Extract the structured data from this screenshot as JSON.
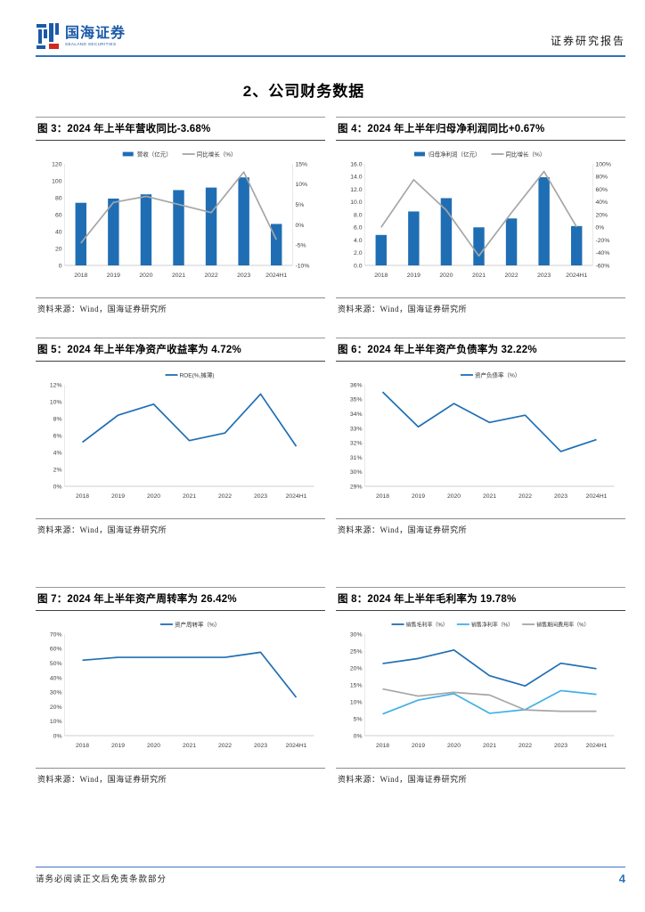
{
  "header": {
    "logo_text": "国海证券",
    "logo_subtext": "SEALAND SECURITIES",
    "report_type": "证券研究报告"
  },
  "section_title": "2、公司财务数据",
  "source_label": "资料来源：Wind，国海证券研究所",
  "footer": {
    "disclaimer": "请务必阅读正文后免责条款部分",
    "page_number": "4"
  },
  "colors": {
    "primary_blue": "#1F6EB4",
    "light_blue": "#41B0E6",
    "gray_line": "#A6A6A6",
    "logo_blue": "#1B5AA8",
    "logo_red": "#CE2A20",
    "header_rule": "#2E74B5",
    "footer_rule": "#4472C4",
    "page_number_blue": "#2E75B6"
  },
  "figures": {
    "fig3": {
      "title": "图 3：2024 年上半年营收同比-3.68%"
    },
    "fig4": {
      "title": "图 4：2024 年上半年归母净利润同比+0.67%"
    },
    "fig5": {
      "title": "图 5：2024 年上半年净资产收益率为 4.72%"
    },
    "fig6": {
      "title": "图 6：2024 年上半年资产负债率为 32.22%"
    },
    "fig7": {
      "title": "图 7：2024 年上半年资产周转率为 26.42%"
    },
    "fig8": {
      "title": "图 8：2024 年上半年毛利率为 19.78%"
    }
  },
  "chart_data": [
    {
      "id": "fig3",
      "type": "combo",
      "legend_position": "top",
      "categories": [
        "2018",
        "2019",
        "2020",
        "2021",
        "2022",
        "2023",
        "2024H1"
      ],
      "bar_series": {
        "name": "营收（亿元）",
        "values": [
          74,
          79,
          84,
          89,
          92,
          104,
          49
        ],
        "color": "#1F6EB4"
      },
      "line_series": {
        "name": "同比增长（%）",
        "values": [
          -4.5,
          5.5,
          7.0,
          5.0,
          3.0,
          13.0,
          -3.68
        ],
        "color": "#A6A6A6",
        "axis": "right"
      },
      "left_axis": {
        "min": 0,
        "max": 120,
        "step": 20,
        "fmt": "int"
      },
      "right_axis": {
        "min": -10,
        "max": 15,
        "step": 5,
        "fmt": "pct"
      }
    },
    {
      "id": "fig4",
      "type": "combo",
      "legend_position": "top",
      "categories": [
        "2018",
        "2019",
        "2020",
        "2021",
        "2022",
        "2023",
        "2024H1"
      ],
      "bar_series": {
        "name": "归母净利润（亿元）",
        "values": [
          4.8,
          8.5,
          10.6,
          6.0,
          7.4,
          13.9,
          6.2
        ],
        "color": "#1F6EB4"
      },
      "line_series": {
        "name": "同比增长（%）",
        "values": [
          0,
          75,
          27,
          -45,
          23,
          88,
          0.67
        ],
        "color": "#A6A6A6",
        "axis": "right"
      },
      "left_axis": {
        "min": 0,
        "max": 16,
        "step": 2,
        "fmt": "dec1"
      },
      "right_axis": {
        "min": -60,
        "max": 100,
        "step": 20,
        "fmt": "pct"
      }
    },
    {
      "id": "fig5",
      "type": "line",
      "legend_position": "top",
      "categories": [
        "2018",
        "2019",
        "2020",
        "2021",
        "2022",
        "2023",
        "2024H1"
      ],
      "series": [
        {
          "name": "ROE(%,摊薄)",
          "values": [
            5.2,
            8.4,
            9.7,
            5.4,
            6.3,
            10.9,
            4.72
          ],
          "color": "#1F6EB4"
        }
      ],
      "axis": {
        "min": 0,
        "max": 12,
        "step": 2,
        "fmt": "pct"
      }
    },
    {
      "id": "fig6",
      "type": "line",
      "legend_position": "top",
      "categories": [
        "2018",
        "2019",
        "2020",
        "2021",
        "2022",
        "2023",
        "2024H1"
      ],
      "series": [
        {
          "name": "资产负债率（%）",
          "values": [
            35.5,
            33.1,
            34.7,
            33.4,
            33.9,
            31.4,
            32.22
          ],
          "color": "#1F6EB4"
        }
      ],
      "axis": {
        "min": 29,
        "max": 36,
        "step": 1,
        "fmt": "pct"
      }
    },
    {
      "id": "fig7",
      "type": "line",
      "legend_position": "top",
      "categories": [
        "2018",
        "2019",
        "2020",
        "2021",
        "2022",
        "2023",
        "2024H1"
      ],
      "series": [
        {
          "name": "资产周转率（%）",
          "values": [
            52,
            54,
            54,
            54,
            54,
            57.5,
            26.42
          ],
          "color": "#1F6EB4"
        }
      ],
      "axis": {
        "min": 0,
        "max": 70,
        "step": 10,
        "fmt": "pct"
      }
    },
    {
      "id": "fig8",
      "type": "line",
      "legend_position": "top",
      "legend_font": 6,
      "categories": [
        "2018",
        "2019",
        "2020",
        "2021",
        "2022",
        "2023",
        "2024H1"
      ],
      "series": [
        {
          "name": "销售毛利率（%）",
          "values": [
            21.3,
            22.8,
            25.3,
            17.7,
            14.7,
            21.4,
            19.78
          ],
          "color": "#1F6EB4"
        },
        {
          "name": "销售净利率（%）",
          "values": [
            6.4,
            10.5,
            12.4,
            6.6,
            7.7,
            13.3,
            12.2
          ],
          "color": "#41B0E6"
        },
        {
          "name": "销售期间费用率（%）",
          "values": [
            13.8,
            11.7,
            12.8,
            12.0,
            7.6,
            7.2,
            7.2
          ],
          "color": "#A6A6A6"
        }
      ],
      "axis": {
        "min": 0,
        "max": 30,
        "step": 5,
        "fmt": "pct"
      }
    }
  ]
}
